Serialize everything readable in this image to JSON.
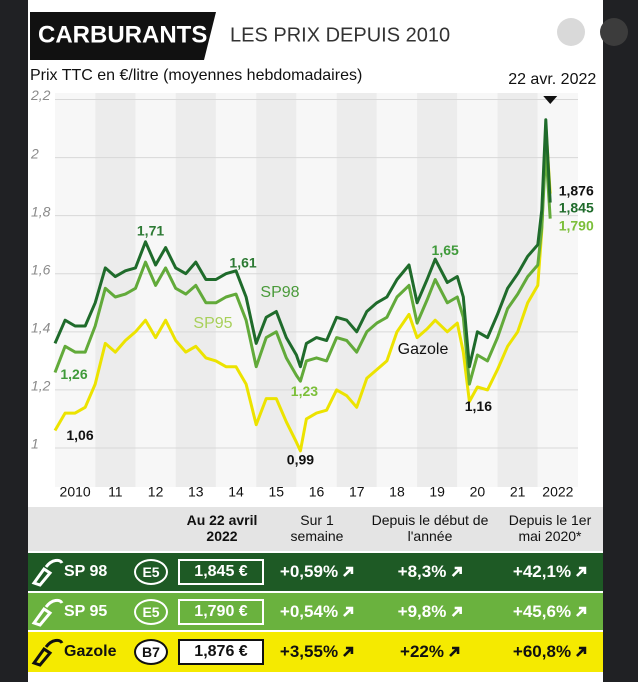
{
  "header": {
    "title": "CARBURANTS",
    "subtitle": "LES PRIX DEPUIS 2010"
  },
  "chart_data": {
    "type": "line",
    "title": "Prix TTC en €/litre (moyennes hebdomadaires)",
    "marker": {
      "label": "22 avr. 2022",
      "x": 2022.31
    },
    "x": [
      2010.0,
      2010.25,
      2010.5,
      2010.75,
      2011.0,
      2011.25,
      2011.5,
      2011.75,
      2012.0,
      2012.25,
      2012.5,
      2012.75,
      2013.0,
      2013.25,
      2013.5,
      2013.75,
      2014.0,
      2014.25,
      2014.5,
      2014.75,
      2015.0,
      2015.25,
      2015.5,
      2015.75,
      2016.0,
      2016.1,
      2016.25,
      2016.5,
      2016.75,
      2017.0,
      2017.25,
      2017.5,
      2017.75,
      2018.0,
      2018.25,
      2018.5,
      2018.8,
      2019.0,
      2019.25,
      2019.45,
      2019.75,
      2020.0,
      2020.15,
      2020.3,
      2020.5,
      2020.75,
      2021.0,
      2021.25,
      2021.5,
      2021.75,
      2022.0,
      2022.1,
      2022.2,
      2022.31
    ],
    "series": [
      {
        "name": "SP98",
        "color": "#1f6b2b",
        "values": [
          1.36,
          1.44,
          1.42,
          1.42,
          1.5,
          1.62,
          1.59,
          1.61,
          1.62,
          1.71,
          1.63,
          1.69,
          1.62,
          1.6,
          1.64,
          1.58,
          1.58,
          1.6,
          1.61,
          1.52,
          1.36,
          1.45,
          1.47,
          1.38,
          1.32,
          1.28,
          1.36,
          1.38,
          1.37,
          1.45,
          1.44,
          1.4,
          1.47,
          1.5,
          1.52,
          1.58,
          1.63,
          1.5,
          1.58,
          1.65,
          1.57,
          1.59,
          1.52,
          1.28,
          1.4,
          1.38,
          1.46,
          1.55,
          1.6,
          1.66,
          1.7,
          1.82,
          2.13,
          1.845
        ]
      },
      {
        "name": "SP95",
        "color": "#62aa3a",
        "values": [
          1.26,
          1.35,
          1.33,
          1.33,
          1.42,
          1.55,
          1.52,
          1.53,
          1.55,
          1.64,
          1.56,
          1.62,
          1.55,
          1.53,
          1.56,
          1.5,
          1.5,
          1.52,
          1.53,
          1.44,
          1.28,
          1.38,
          1.4,
          1.31,
          1.25,
          1.23,
          1.3,
          1.31,
          1.3,
          1.38,
          1.37,
          1.33,
          1.4,
          1.43,
          1.45,
          1.52,
          1.56,
          1.43,
          1.51,
          1.58,
          1.5,
          1.52,
          1.45,
          1.22,
          1.32,
          1.3,
          1.38,
          1.48,
          1.53,
          1.59,
          1.63,
          1.76,
          2.03,
          1.79
        ]
      },
      {
        "name": "Gazole",
        "color": "#ece300",
        "values": [
          1.06,
          1.12,
          1.12,
          1.14,
          1.22,
          1.36,
          1.33,
          1.37,
          1.4,
          1.44,
          1.38,
          1.44,
          1.37,
          1.33,
          1.35,
          1.31,
          1.3,
          1.28,
          1.28,
          1.22,
          1.08,
          1.17,
          1.17,
          1.09,
          1.02,
          0.99,
          1.1,
          1.12,
          1.13,
          1.2,
          1.18,
          1.14,
          1.24,
          1.27,
          1.3,
          1.4,
          1.46,
          1.38,
          1.41,
          1.44,
          1.4,
          1.43,
          1.33,
          1.16,
          1.21,
          1.2,
          1.27,
          1.35,
          1.4,
          1.5,
          1.56,
          1.75,
          2.11,
          1.876
        ]
      }
    ],
    "annotations": [
      {
        "text": "1,71",
        "x": 2012.25,
        "y": 1.71,
        "color": "#2d7a34"
      },
      {
        "text": "1,61",
        "x": 2014.5,
        "y": 1.61,
        "color": "#2d7a34"
      },
      {
        "text": "1,65",
        "x": 2019.45,
        "y": 1.65,
        "color": "#3f9a3a"
      },
      {
        "text": "1,26",
        "x": 2010.0,
        "y": 1.26,
        "color": "#3f9a3a"
      },
      {
        "text": "1,06",
        "x": 2010.0,
        "y": 1.06,
        "color": "#111111"
      },
      {
        "text": "0,99",
        "x": 2016.1,
        "y": 0.99,
        "color": "#111111"
      },
      {
        "text": "1,23",
        "x": 2016.1,
        "y": 1.23,
        "color": "#7cbf3a"
      },
      {
        "text": "1,16",
        "x": 2020.3,
        "y": 1.16,
        "color": "#111111"
      },
      {
        "text": "1,876",
        "x": 2022.31,
        "y": 1.876,
        "color": "#111111"
      },
      {
        "text": "1,845",
        "x": 2022.31,
        "y": 1.845,
        "color": "#1f6b2b"
      },
      {
        "text": "1,790",
        "x": 2022.31,
        "y": 1.79,
        "color": "#7cbf3a"
      }
    ],
    "xlim": [
      2010,
      2023
    ],
    "xticks": [
      2010,
      {
        "value": 2011,
        "label": "11"
      },
      {
        "value": 2012,
        "label": "12"
      },
      {
        "value": 2013,
        "label": "13"
      },
      {
        "value": 2014,
        "label": "14"
      },
      {
        "value": 2015,
        "label": "15"
      },
      {
        "value": 2016,
        "label": "16"
      },
      {
        "value": 2017,
        "label": "17"
      },
      {
        "value": 2018,
        "label": "18"
      },
      {
        "value": 2019,
        "label": "19"
      },
      {
        "value": 2020,
        "label": "20"
      },
      {
        "value": 2021,
        "label": "21"
      },
      2022
    ],
    "ylim": [
      0.9,
      2.25
    ],
    "yticks": [
      1,
      {
        "value": 1.2,
        "label": "1,2"
      },
      {
        "value": 1.4,
        "label": "1,4"
      },
      {
        "value": 1.6,
        "label": "1,6"
      },
      {
        "value": 1.8,
        "label": "1,8"
      },
      2,
      {
        "value": 2.2,
        "label": "2,2"
      }
    ],
    "grid": true
  },
  "table": {
    "headers": [
      "Au 22 avril 2022",
      "Sur 1 semaine",
      "Depuis le début de l'année",
      "Depuis le 1er mai 2020*"
    ],
    "rows": [
      [
        "SP 98",
        "E5",
        "1,845 €",
        "+0,59%",
        "+8,3%",
        "+42,1%"
      ],
      [
        "SP 95",
        "E5",
        "1,790 €",
        "+0,54%",
        "+9,8%",
        "+45,6%"
      ],
      [
        "Gazole",
        "B7",
        "1,876 €",
        "+3,55%",
        "+22%",
        "+60,8%"
      ]
    ]
  }
}
